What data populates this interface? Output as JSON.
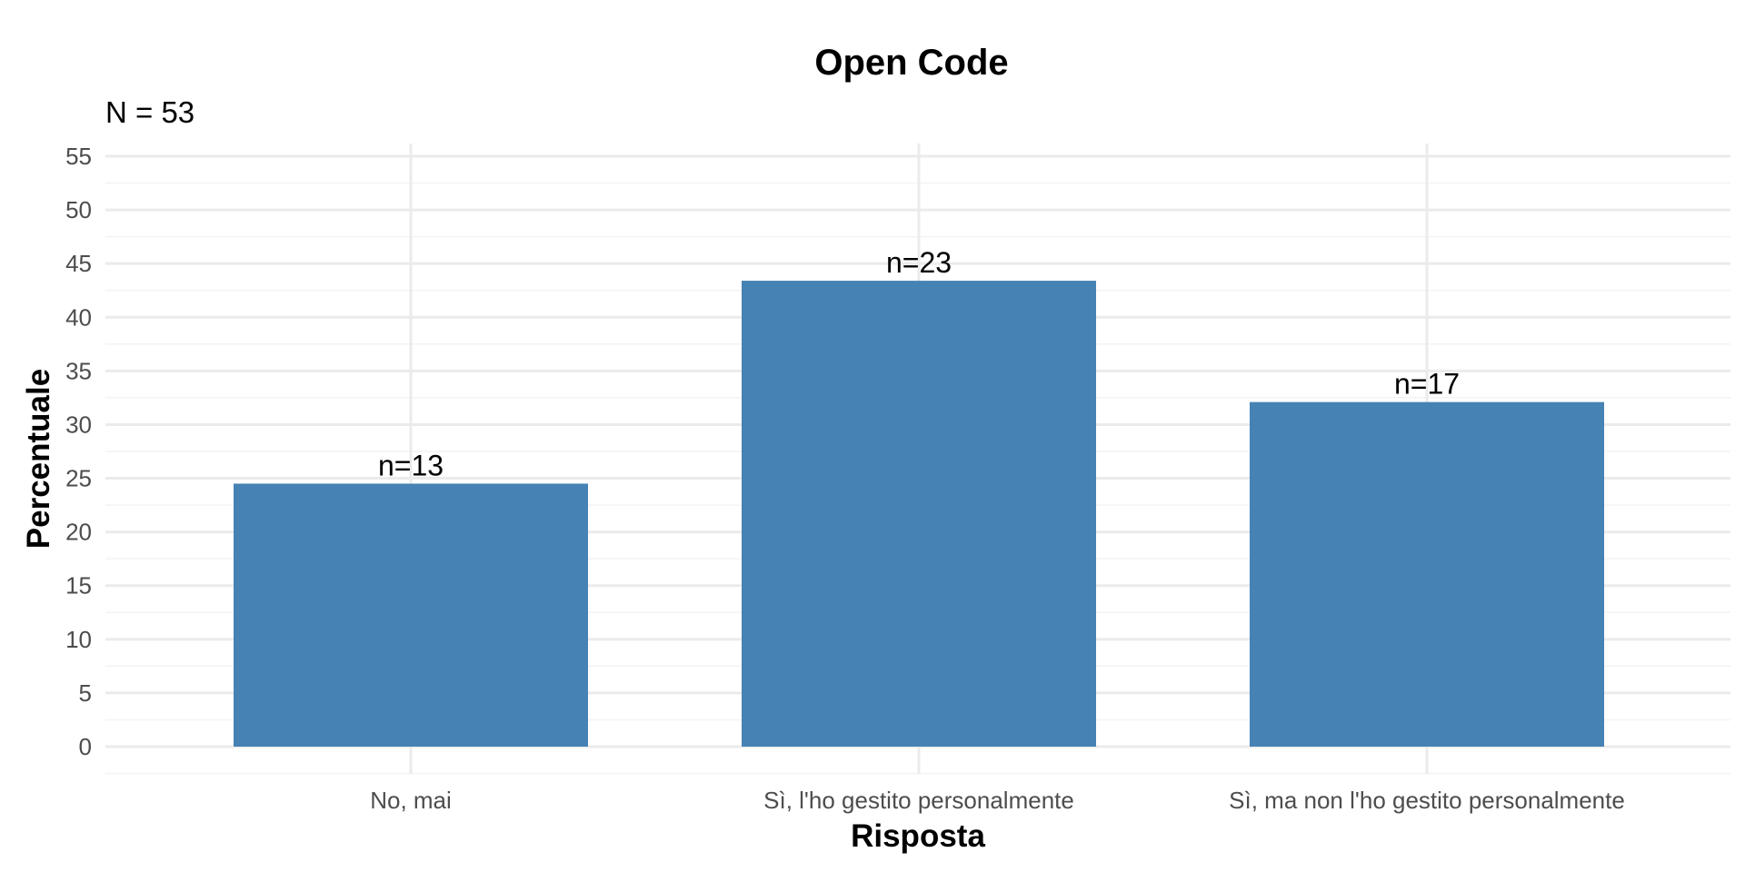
{
  "chart_data": {
    "type": "bar",
    "title": "Open Code",
    "subtitle": "N = 53",
    "xlabel": "Risposta",
    "ylabel": "Percentuale",
    "categories": [
      "No, mai",
      "Sì, l'ho gestito personalmente",
      "Sì, ma non l'ho gestito personalmente"
    ],
    "values": [
      24.5,
      43.4,
      32.1
    ],
    "bar_labels": [
      "n=13",
      "n=23",
      "n=17"
    ],
    "ylim": [
      0,
      55
    ],
    "yticks": [
      0,
      5,
      10,
      15,
      20,
      25,
      30,
      35,
      40,
      45,
      50,
      55
    ],
    "grid": true,
    "bar_color": "#4682b4"
  }
}
